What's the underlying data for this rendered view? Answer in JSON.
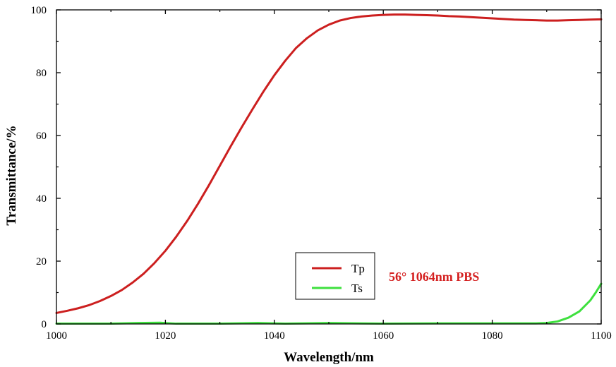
{
  "chart_data": {
    "type": "line",
    "title": "",
    "xlabel": "Wavelength/nm",
    "ylabel": "Transmittance/%",
    "xlim": [
      1000,
      1100
    ],
    "ylim": [
      0,
      100
    ],
    "x_ticks": [
      "1000",
      "1020",
      "1040",
      "1060",
      "1080",
      "1100"
    ],
    "y_ticks": [
      "0",
      "20",
      "40",
      "60",
      "80",
      "100"
    ],
    "grid": false,
    "legend_position": "bottom-center",
    "annotation": "56° 1064nm PBS",
    "annotation_color": "#d42020",
    "series": [
      {
        "name": "Tp",
        "color": "#cc1f1f",
        "x": [
          1000,
          1002,
          1004,
          1006,
          1008,
          1010,
          1012,
          1014,
          1016,
          1018,
          1020,
          1022,
          1024,
          1026,
          1028,
          1030,
          1032,
          1034,
          1036,
          1038,
          1040,
          1042,
          1044,
          1046,
          1048,
          1050,
          1052,
          1054,
          1056,
          1058,
          1060,
          1062,
          1064,
          1066,
          1068,
          1070,
          1072,
          1074,
          1076,
          1078,
          1080,
          1082,
          1084,
          1086,
          1088,
          1090,
          1092,
          1094,
          1096,
          1098,
          1100
        ],
        "y": [
          3.5,
          4.2,
          5.0,
          6.0,
          7.3,
          8.9,
          10.8,
          13.2,
          16.0,
          19.4,
          23.3,
          27.8,
          32.8,
          38.3,
          44.2,
          50.4,
          56.6,
          62.6,
          68.4,
          74.0,
          79.2,
          83.8,
          87.9,
          91.0,
          93.5,
          95.3,
          96.6,
          97.4,
          97.9,
          98.2,
          98.4,
          98.5,
          98.5,
          98.4,
          98.3,
          98.2,
          98.0,
          97.9,
          97.7,
          97.5,
          97.3,
          97.1,
          96.9,
          96.8,
          96.7,
          96.6,
          96.6,
          96.7,
          96.8,
          96.9,
          97.0
        ]
      },
      {
        "name": "Ts",
        "color": "#3ee03e",
        "x": [
          1000,
          1005,
          1010,
          1015,
          1019,
          1022,
          1030,
          1037,
          1042,
          1050,
          1060,
          1070,
          1080,
          1088,
          1090,
          1092,
          1094,
          1096,
          1098,
          1099,
          1100
        ],
        "y": [
          0.1,
          0.1,
          0.1,
          0.3,
          0.4,
          0.1,
          0.1,
          0.3,
          0.1,
          0.3,
          0.1,
          0.2,
          0.2,
          0.2,
          0.3,
          0.8,
          2.0,
          4.0,
          7.5,
          10.0,
          12.8
        ]
      }
    ]
  }
}
